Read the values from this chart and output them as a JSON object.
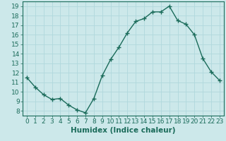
{
  "x": [
    0,
    1,
    2,
    3,
    4,
    5,
    6,
    7,
    8,
    9,
    10,
    11,
    12,
    13,
    14,
    15,
    16,
    17,
    18,
    19,
    20,
    21,
    22,
    23
  ],
  "y": [
    11.5,
    10.5,
    9.7,
    9.2,
    9.3,
    8.6,
    8.1,
    7.8,
    9.3,
    11.7,
    13.4,
    14.7,
    16.2,
    17.4,
    17.7,
    18.4,
    18.4,
    19.0,
    17.5,
    17.1,
    16.0,
    13.5,
    12.1,
    11.2
  ],
  "line_color": "#1a6b5a",
  "marker": "+",
  "marker_size": 4,
  "bg_color": "#cce8ea",
  "grid_color": "#b0d8dc",
  "xlabel": "Humidex (Indice chaleur)",
  "xlim": [
    -0.5,
    23.5
  ],
  "ylim": [
    7.5,
    19.5
  ],
  "yticks": [
    8,
    9,
    10,
    11,
    12,
    13,
    14,
    15,
    16,
    17,
    18,
    19
  ],
  "xticks": [
    0,
    1,
    2,
    3,
    4,
    5,
    6,
    7,
    8,
    9,
    10,
    11,
    12,
    13,
    14,
    15,
    16,
    17,
    18,
    19,
    20,
    21,
    22,
    23
  ],
  "tick_fontsize": 6.5,
  "xlabel_fontsize": 7.5
}
